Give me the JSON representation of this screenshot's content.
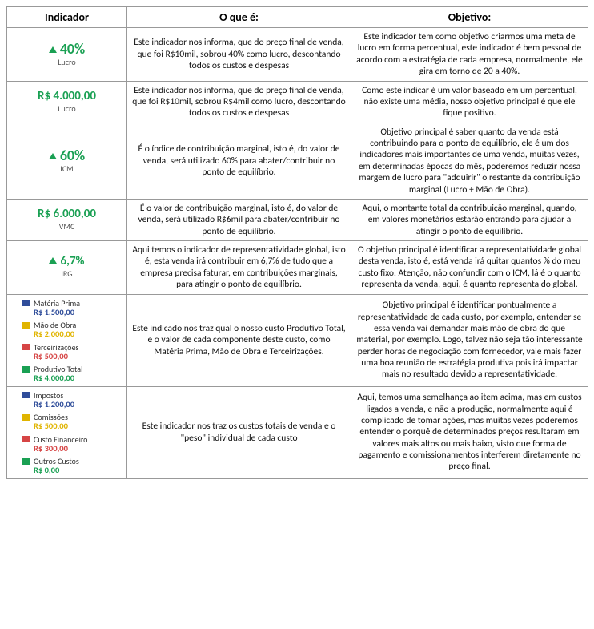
{
  "header": {
    "indicador": "Indicador",
    "oque": "O que é:",
    "objetivo": "Objetivo:"
  },
  "colors": {
    "green": "#1aa053",
    "blue": "#2f4d9a",
    "yellow": "#e0b400",
    "red": "#d64545",
    "green2": "#1aa053"
  },
  "rows": [
    {
      "indicator": {
        "kind": "value",
        "arrow": true,
        "value": "40%",
        "sub": "Lucro",
        "color": "#1aa053",
        "size": "lg"
      },
      "oque": "Este indicador nos informa, que do preço final de venda, que foi R$10mil, sobrou 40% como lucro, descontando todos os custos e despesas",
      "objetivo": "Este indicador tem como objetivo criarmos uma meta de lucro em forma percentual, este indicador é bem pessoal de acordo com a estratégia de cada empresa, normalmente, ele gira em torno de 20 a 40%."
    },
    {
      "indicator": {
        "kind": "value",
        "arrow": false,
        "value": "R$ 4.000,00",
        "sub": "Lucro",
        "color": "#1aa053",
        "size": "md"
      },
      "oque": "Este indicador nos informa, que do preço final de venda, que foi R$10mil, sobrou R$4mil como lucro, descontando todos os custos e despesas",
      "objetivo": "Como este indicar é um valor baseado em um percentual, não existe uma média, nosso objetivo principal é que ele fique positivo."
    },
    {
      "indicator": {
        "kind": "value",
        "arrow": true,
        "value": "60%",
        "sub": "ICM",
        "color": "#1aa053",
        "size": "lg"
      },
      "oque": "É o índice de contribuição marginal, isto é, do valor de venda, será utilizado 60% para abater/contribuir no ponto de equilíbrio.",
      "objetivo": "Objetivo principal é saber quanto da venda está contribuindo para o ponto de equilíbrio, ele é um dos indicadores mais importantes de uma venda, muitas vezes, em determinadas épocas do mês, poderemos reduzir nossa margem de lucro para \"adquirir\" o restante da contribuição marginal (Lucro + Mão de Obra)."
    },
    {
      "indicator": {
        "kind": "value",
        "arrow": false,
        "value": "R$ 6.000,00",
        "sub": "VMC",
        "color": "#1aa053",
        "size": "md"
      },
      "oque": "É o valor de contribuição marginal, isto é, do valor de venda, será utilizado R$6mil para abater/contribuir no ponto de equilíbrio.",
      "objetivo": "Aqui, o montante total da contribuição marginal, quando, em valores monetários estarão entrando para ajudar a atingir o ponto de equilíbrio."
    },
    {
      "indicator": {
        "kind": "value",
        "arrow": true,
        "value": "6,7%",
        "sub": "IRG",
        "color": "#1aa053",
        "size": "md"
      },
      "oque": "Aqui temos o indicador de representatividade global, isto é, esta venda irá contribuir em 6,7% de tudo que a empresa precisa faturar, em contribuições marginais, para atingir o ponto de equilíbrio.",
      "objetivo": "O objetivo principal é identificar a representatividade global desta venda, isto é, está venda irá quitar quantos % do meu custo fixo. Atenção, não confundir com o ICM, lá é o quanto representa da venda, aqui, é quanto representa do global."
    },
    {
      "indicator": {
        "kind": "legend",
        "items": [
          {
            "color": "#2f4d9a",
            "name": "Matéria Prima",
            "value": "R$ 1.500,00"
          },
          {
            "color": "#e0b400",
            "name": "Mão de Obra",
            "value": "R$ 2.000,00"
          },
          {
            "color": "#d64545",
            "name": "Terceirizações",
            "value": "R$ 500,00"
          },
          {
            "color": "#1aa053",
            "name": "Produtivo Total",
            "value": "R$ 4.000,00"
          }
        ]
      },
      "oque": "Este indicado nos traz qual o nosso custo Produtivo Total, e o valor de cada componente deste custo, como Matéria Prima, Mão de Obra e Terceirizações.",
      "objetivo": "Objetivo principal é identificar pontualmente a representatividade de cada custo, por exemplo, entender se essa venda vai demandar mais mão de obra do que material, por exemplo. Logo, talvez não seja tão interessante perder horas de negociação com fornecedor, vale mais fazer uma boa reunião de estratégia produtiva pois irá impactar mais no resultado devido a representatividade."
    },
    {
      "indicator": {
        "kind": "legend",
        "items": [
          {
            "color": "#2f4d9a",
            "name": "Impostos",
            "value": "R$ 1.200,00"
          },
          {
            "color": "#e0b400",
            "name": "Comissões",
            "value": "R$ 500,00"
          },
          {
            "color": "#d64545",
            "name": "Custo Financeiro",
            "value": "R$ 300,00"
          },
          {
            "color": "#1aa053",
            "name": "Outros Custos",
            "value": "R$ 0,00"
          }
        ]
      },
      "oque": "Este indicador nos traz os custos totais de venda e o \"peso\" individual de cada custo",
      "objetivo": "Aqui, temos uma semelhança ao item acima, mas em custos ligados a venda, e não a produção, normalmente aqui é complicado de tomar ações, mas muitas vezes poderemos entender o porquê de determinados preços resultaram em valores mais altos ou mais baixo, visto que forma de pagamento e comissionamentos interferem diretamente no preço final."
    }
  ]
}
